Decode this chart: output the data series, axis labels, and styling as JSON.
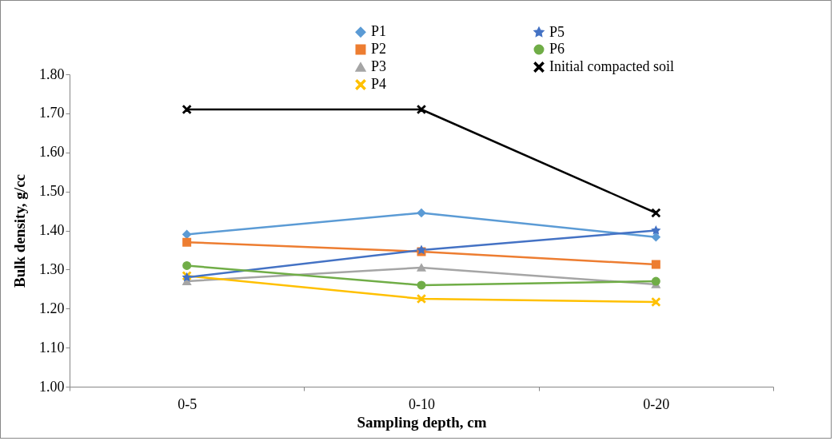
{
  "chart_data": {
    "type": "line",
    "xlabel": "Sampling depth, cm",
    "ylabel": "Bulk density, g/cc",
    "categories": [
      "0-5",
      "0-10",
      "0-20"
    ],
    "ylim": [
      1.0,
      1.8
    ],
    "yticks": [
      {
        "value": 1.0,
        "label": "1.00"
      },
      {
        "value": 1.1,
        "label": "1.10"
      },
      {
        "value": 1.2,
        "label": "1.20"
      },
      {
        "value": 1.3,
        "label": "1.30"
      },
      {
        "value": 1.4,
        "label": "1.40"
      },
      {
        "value": 1.5,
        "label": "1.50"
      },
      {
        "value": 1.6,
        "label": "1.60"
      },
      {
        "value": 1.7,
        "label": "1.70"
      },
      {
        "value": 1.8,
        "label": "1.80"
      }
    ],
    "grid": false,
    "legend": "top",
    "series": [
      {
        "name": "P1",
        "color": "#5b9bd5",
        "marker": "diamond",
        "values": [
          1.39,
          1.445,
          1.383
        ]
      },
      {
        "name": "P2",
        "color": "#ed7d31",
        "marker": "square",
        "values": [
          1.37,
          1.346,
          1.313
        ]
      },
      {
        "name": "P3",
        "color": "#a5a5a5",
        "marker": "triangle",
        "values": [
          1.27,
          1.305,
          1.262
        ]
      },
      {
        "name": "P4",
        "color": "#ffc000",
        "marker": "cross",
        "values": [
          1.284,
          1.225,
          1.217
        ]
      },
      {
        "name": "P5",
        "color": "#4472c4",
        "marker": "star",
        "values": [
          1.28,
          1.35,
          1.4
        ]
      },
      {
        "name": "P6",
        "color": "#70ad47",
        "marker": "circle",
        "values": [
          1.31,
          1.26,
          1.27
        ]
      },
      {
        "name": "Initial compacted soil",
        "color": "#000000",
        "marker": "cross",
        "values": [
          1.71,
          1.71,
          1.445
        ]
      }
    ]
  }
}
